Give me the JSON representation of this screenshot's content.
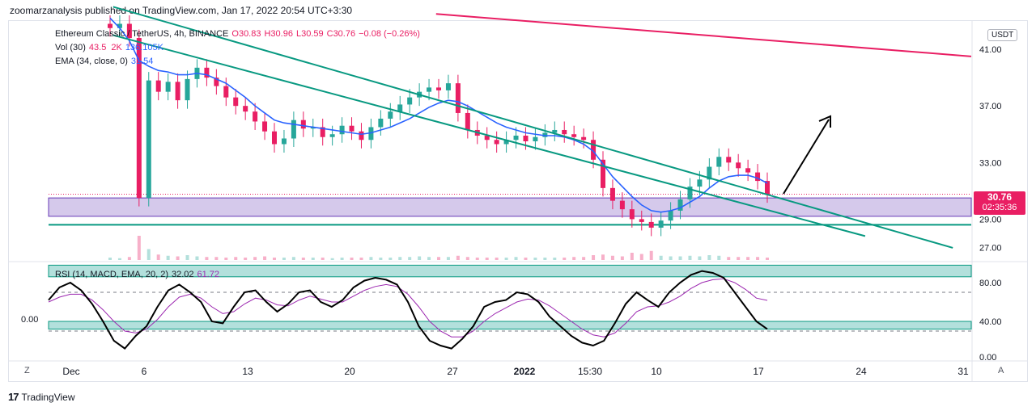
{
  "header": {
    "text": "zoomarzanalysis published on TradingView.com, Jan 17, 2022 20:54 UTC+3:30"
  },
  "legend": {
    "symbol": "Ethereum Classic / TetherUS, 4h, BINANCE",
    "open": "O30.83",
    "high": "H30.96",
    "low": "L30.59",
    "close": "C30.76",
    "change": "−0.08 (−0.26%)",
    "vol_label": "Vol (30)",
    "vol_v1": "43.5",
    "vol_v1_tail": "2K",
    "vol_v2": "136.105K",
    "ema_label": "EMA (34, close, 0)",
    "ema_value": "31.54",
    "rsi_label": "RSI (14, MACD, EMA, 20, 2)",
    "rsi_v1": "32.02",
    "rsi_v2": "61.72"
  },
  "price_tag": {
    "price": "30.76",
    "countdown": "02:35:36"
  },
  "currency_button": "USDT",
  "corner_left": "Z",
  "corner_right": "A",
  "rsi_left_value": "0.00",
  "footer": {
    "brand": "TradingView"
  },
  "colors": {
    "up": "#26a69a",
    "down": "#e91e63",
    "ema": "#2962ff",
    "channel": "#089981",
    "resistance": "#e91e63",
    "zone": "#b39ddb",
    "rsi": "#000000",
    "rsi_signal": "#9c27b0"
  },
  "chart_data": [
    {
      "type": "candlestick",
      "symbol": "Ethereum Classic / TetherUS",
      "timeframe": "4h",
      "ylim": [
        26,
        43
      ],
      "y_ticks": [
        "41.00",
        "37.00",
        "33.00",
        "29.00",
        "27.00"
      ],
      "x_ticks": [
        "Dec",
        "6",
        "13",
        "20",
        "27",
        "2022",
        "15:30",
        "10",
        "17",
        "24",
        "31"
      ],
      "close_series": [
        42.5,
        42.8,
        41.8,
        30.5,
        38.8,
        38.0,
        38.7,
        37.4,
        38.9,
        39.7,
        39.0,
        38.4,
        37.6,
        37.0,
        36.6,
        35.9,
        35.2,
        34.3,
        34.7,
        36.0,
        35.4,
        35.5,
        34.8,
        35.0,
        35.6,
        35.2,
        34.6,
        35.5,
        36.1,
        36.6,
        37.1,
        37.6,
        38.0,
        38.3,
        38.1,
        38.6,
        36.5,
        35.3,
        34.9,
        34.6,
        34.3,
        34.6,
        34.9,
        34.5,
        34.8,
        35.1,
        35.3,
        35.0,
        34.8,
        34.6,
        33.2,
        31.2,
        30.3,
        29.7,
        29.0,
        28.8,
        28.4,
        28.9,
        29.6,
        30.4,
        31.3,
        31.8,
        32.7,
        33.4,
        33.0,
        32.6,
        32.3,
        31.7,
        30.76
      ],
      "ema_series": [
        43.2,
        42.5,
        41.6,
        40.2,
        39.8,
        39.5,
        39.4,
        39.2,
        39.2,
        39.3,
        39.2,
        38.9,
        38.6,
        38.1,
        37.6,
        37.0,
        36.5,
        36.0,
        35.8,
        35.7,
        35.6,
        35.5,
        35.4,
        35.3,
        35.2,
        35.1,
        35.0,
        35.1,
        35.3,
        35.5,
        35.8,
        36.1,
        36.5,
        36.9,
        37.2,
        37.4,
        37.3,
        37.0,
        36.6,
        36.2,
        35.8,
        35.5,
        35.3,
        35.1,
        35.0,
        34.9,
        34.9,
        34.8,
        34.6,
        34.3,
        33.8,
        32.9,
        32.0,
        31.3,
        30.6,
        30.0,
        29.6,
        29.5,
        29.6,
        29.8,
        30.2,
        30.6,
        31.2,
        31.7,
        32.0,
        32.1,
        32.1,
        31.9,
        31.54
      ],
      "volume_series": [
        0.4,
        0.3,
        0.5,
        4.0,
        1.8,
        0.9,
        0.7,
        0.6,
        0.8,
        0.6,
        0.5,
        0.5,
        0.4,
        0.5,
        0.4,
        0.5,
        0.6,
        0.4,
        0.4,
        0.5,
        0.4,
        0.4,
        0.4,
        0.3,
        0.4,
        0.4,
        0.4,
        0.5,
        0.4,
        0.4,
        0.5,
        0.5,
        0.6,
        0.5,
        0.5,
        0.5,
        0.7,
        0.5,
        0.4,
        0.4,
        0.4,
        0.4,
        0.5,
        0.4,
        0.4,
        0.4,
        0.4,
        0.4,
        0.5,
        0.5,
        0.8,
        0.9,
        0.7,
        0.6,
        1.2,
        1.0,
        1.5,
        0.7,
        0.6,
        0.6,
        0.7,
        0.6,
        0.8,
        0.7,
        0.5,
        0.5,
        0.5,
        0.5,
        0.4
      ],
      "annotations": {
        "current_price_line": 30.76,
        "demand_zone": [
          29.2,
          30.5
        ],
        "support_line": 28.6,
        "descending_resistance": [
          [
            0,
            42.5
          ],
          [
            1,
            40.5
          ]
        ],
        "descending_channel_upper": [
          [
            0,
            44.0
          ],
          [
            1,
            27.5
          ]
        ],
        "descending_channel_lower": [
          [
            0,
            42.0
          ],
          [
            1,
            26.7
          ]
        ],
        "arrow": "up"
      }
    },
    {
      "type": "line",
      "name": "RSI",
      "ylim": [
        0,
        100
      ],
      "y_ticks": [
        "80.00",
        "40.00",
        "0.00"
      ],
      "bands": [
        [
          86,
          98
        ],
        [
          32,
          40
        ]
      ],
      "series": [
        {
          "name": "RSI",
          "values": [
            62,
            75,
            80,
            72,
            58,
            40,
            20,
            12,
            25,
            35,
            55,
            72,
            78,
            70,
            60,
            40,
            38,
            55,
            70,
            72,
            60,
            50,
            58,
            70,
            72,
            60,
            55,
            62,
            75,
            82,
            85,
            83,
            78,
            60,
            35,
            20,
            15,
            12,
            22,
            35,
            55,
            60,
            62,
            70,
            68,
            60,
            45,
            35,
            25,
            18,
            15,
            20,
            38,
            58,
            70,
            62,
            55,
            70,
            80,
            88,
            92,
            90,
            85,
            70,
            55,
            40,
            32
          ]
        },
        {
          "name": "RSI MA",
          "values": [
            60,
            65,
            68,
            68,
            62,
            52,
            40,
            30,
            28,
            32,
            42,
            55,
            65,
            68,
            64,
            55,
            48,
            50,
            58,
            64,
            62,
            57,
            56,
            62,
            66,
            63,
            60,
            60,
            66,
            72,
            76,
            78,
            76,
            68,
            55,
            40,
            30,
            24,
            24,
            30,
            40,
            48,
            54,
            60,
            63,
            62,
            56,
            48,
            40,
            32,
            26,
            24,
            28,
            38,
            50,
            55,
            56,
            60,
            66,
            74,
            80,
            83,
            84,
            80,
            73,
            64,
            61.7
          ]
        }
      ]
    }
  ]
}
